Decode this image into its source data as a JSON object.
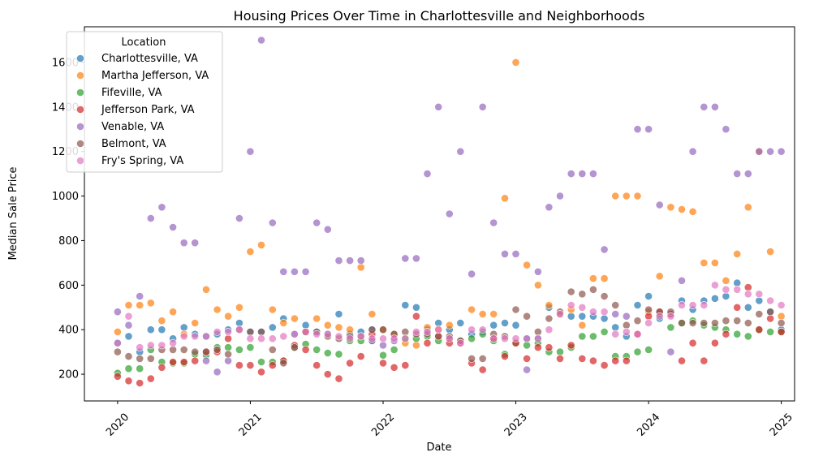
{
  "chart_data": {
    "type": "scatter",
    "title": "Housing Prices Over Time in Charlottesville and Neighborhoods",
    "xlabel": "Date",
    "ylabel": "Median Sale Price",
    "xlim": [
      2019.75,
      2025.1
    ],
    "ylim": [
      80,
      1760
    ],
    "x_ticks": [
      2020,
      2021,
      2022,
      2023,
      2024,
      2025
    ],
    "x_tick_labels": [
      "2020",
      "2021",
      "2022",
      "2023",
      "2024",
      "2025"
    ],
    "y_ticks": [
      200,
      400,
      600,
      800,
      1000,
      1200,
      1400,
      1600
    ],
    "y_tick_labels": [
      "200",
      "400",
      "600",
      "800",
      "1000",
      "1200",
      "1400",
      "1600"
    ],
    "x_scale": "time (year)",
    "grid": false,
    "legend": {
      "title": "Location",
      "placement": "top-left"
    },
    "series": [
      {
        "name": "Charlottesville, VA",
        "color": "#1f77b4",
        "x": [
          2020.0,
          2020.083,
          2020.167,
          2020.25,
          2020.333,
          2020.417,
          2020.5,
          2020.583,
          2020.667,
          2020.75,
          2020.833,
          2020.917,
          2021.0,
          2021.083,
          2021.167,
          2021.25,
          2021.333,
          2021.417,
          2021.5,
          2021.583,
          2021.667,
          2021.75,
          2021.833,
          2021.917,
          2022.0,
          2022.083,
          2022.167,
          2022.25,
          2022.333,
          2022.417,
          2022.5,
          2022.583,
          2022.667,
          2022.75,
          2022.833,
          2022.917,
          2023.0,
          2023.083,
          2023.167,
          2023.25,
          2023.333,
          2023.417,
          2023.5,
          2023.583,
          2023.667,
          2023.75,
          2023.833,
          2023.917,
          2024.0,
          2024.083,
          2024.167,
          2024.25,
          2024.333,
          2024.417,
          2024.5,
          2024.583,
          2024.667,
          2024.75,
          2024.833,
          2024.917,
          2025.0
        ],
        "y": [
          340,
          370,
          300,
          400,
          400,
          360,
          410,
          380,
          370,
          380,
          400,
          430,
          390,
          390,
          410,
          450,
          380,
          420,
          390,
          380,
          470,
          380,
          390,
          400,
          400,
          380,
          510,
          500,
          400,
          430,
          400,
          430,
          380,
          390,
          420,
          430,
          420,
          360,
          360,
          500,
          470,
          460,
          460,
          460,
          450,
          410,
          370,
          510,
          550,
          450,
          470,
          530,
          490,
          530,
          540,
          550,
          610,
          500,
          530,
          480,
          400
        ]
      },
      {
        "name": "Martha Jefferson, VA",
        "color": "#ff7f0e",
        "x": [
          2020.0,
          2020.083,
          2020.167,
          2020.25,
          2020.333,
          2020.417,
          2020.5,
          2020.583,
          2020.667,
          2020.75,
          2020.833,
          2020.917,
          2021.0,
          2021.083,
          2021.167,
          2021.25,
          2021.333,
          2021.417,
          2021.5,
          2021.583,
          2021.667,
          2021.75,
          2021.833,
          2021.917,
          2022.0,
          2022.083,
          2022.167,
          2022.25,
          2022.333,
          2022.417,
          2022.5,
          2022.583,
          2022.667,
          2022.75,
          2022.833,
          2022.917,
          2023.0,
          2023.083,
          2023.167,
          2023.25,
          2023.333,
          2023.417,
          2023.5,
          2023.583,
          2023.667,
          2023.75,
          2023.833,
          2023.917,
          2024.0,
          2024.083,
          2024.167,
          2024.25,
          2024.333,
          2024.417,
          2024.5,
          2024.583,
          2024.667,
          2024.75,
          2024.833,
          2024.917,
          2025.0
        ],
        "y": [
          390,
          510,
          510,
          520,
          440,
          480,
          380,
          430,
          580,
          490,
          460,
          500,
          750,
          780,
          490,
          430,
          450,
          390,
          450,
          420,
          410,
          400,
          680,
          470,
          400,
          380,
          340,
          330,
          410,
          400,
          420,
          350,
          490,
          470,
          470,
          990,
          1600,
          690,
          600,
          510,
          470,
          490,
          420,
          630,
          630,
          1000,
          1000,
          1000,
          480,
          640,
          950,
          940,
          930,
          700,
          700,
          620,
          740,
          950,
          1200,
          750,
          460
        ]
      },
      {
        "name": "Fifeville, VA",
        "color": "#2ca02c",
        "x": [
          2020.0,
          2020.083,
          2020.167,
          2020.25,
          2020.333,
          2020.417,
          2020.5,
          2020.583,
          2020.667,
          2020.75,
          2020.833,
          2020.917,
          2021.0,
          2021.083,
          2021.167,
          2021.25,
          2021.333,
          2021.417,
          2021.5,
          2021.583,
          2021.667,
          2021.75,
          2021.833,
          2021.917,
          2022.0,
          2022.083,
          2022.167,
          2022.25,
          2022.333,
          2022.417,
          2022.5,
          2022.583,
          2022.667,
          2022.75,
          2022.833,
          2022.917,
          2023.0,
          2023.083,
          2023.167,
          2023.25,
          2023.333,
          2023.417,
          2023.5,
          2023.583,
          2023.667,
          2023.75,
          2023.833,
          2023.917,
          2024.0,
          2024.083,
          2024.167,
          2024.25,
          2024.333,
          2024.417,
          2024.5,
          2024.583,
          2024.667,
          2024.75,
          2024.833,
          2024.917,
          2025.0
        ],
        "y": [
          205,
          225,
          225,
          310,
          255,
          250,
          250,
          290,
          285,
          320,
          320,
          310,
          320,
          255,
          255,
          260,
          320,
          335,
          310,
          295,
          290,
          350,
          350,
          350,
          285,
          310,
          360,
          360,
          370,
          350,
          360,
          350,
          360,
          380,
          350,
          290,
          340,
          330,
          340,
          300,
          300,
          320,
          370,
          370,
          390,
          280,
          280,
          300,
          310,
          470,
          410,
          430,
          440,
          420,
          410,
          400,
          380,
          370,
          400,
          390,
          390
        ]
      },
      {
        "name": "Jefferson Park, VA",
        "color": "#d62728",
        "x": [
          2020.0,
          2020.083,
          2020.167,
          2020.25,
          2020.333,
          2020.417,
          2020.5,
          2020.583,
          2020.667,
          2020.75,
          2020.833,
          2020.917,
          2021.0,
          2021.083,
          2021.167,
          2021.25,
          2021.333,
          2021.417,
          2021.5,
          2021.583,
          2021.667,
          2021.75,
          2021.833,
          2021.917,
          2022.0,
          2022.083,
          2022.167,
          2022.25,
          2022.333,
          2022.417,
          2022.5,
          2022.583,
          2022.667,
          2022.75,
          2022.833,
          2022.917,
          2023.0,
          2023.083,
          2023.167,
          2023.25,
          2023.333,
          2023.417,
          2023.5,
          2023.583,
          2023.667,
          2023.75,
          2023.833,
          2023.917,
          2024.0,
          2024.083,
          2024.167,
          2024.25,
          2024.333,
          2024.417,
          2024.5,
          2024.583,
          2024.667,
          2024.75,
          2024.833,
          2024.917,
          2025.0
        ],
        "y": [
          190,
          170,
          160,
          180,
          230,
          255,
          255,
          260,
          300,
          300,
          360,
          240,
          240,
          210,
          240,
          260,
          330,
          310,
          240,
          200,
          180,
          250,
          280,
          380,
          250,
          230,
          240,
          460,
          340,
          370,
          340,
          340,
          250,
          220,
          360,
          280,
          340,
          270,
          320,
          320,
          270,
          330,
          270,
          260,
          240,
          260,
          260,
          380,
          460,
          480,
          470,
          260,
          340,
          260,
          340,
          380,
          500,
          590,
          400,
          450,
          390
        ]
      },
      {
        "name": "Venable, VA",
        "color": "#9467bd",
        "x": [
          2020.0,
          2020.083,
          2020.167,
          2020.25,
          2020.333,
          2020.417,
          2020.5,
          2020.583,
          2020.667,
          2020.75,
          2020.833,
          2020.917,
          2021.0,
          2021.083,
          2021.167,
          2021.25,
          2021.333,
          2021.417,
          2021.5,
          2021.583,
          2021.667,
          2021.75,
          2021.833,
          2021.917,
          2022.0,
          2022.083,
          2022.167,
          2022.25,
          2022.333,
          2022.417,
          2022.5,
          2022.583,
          2022.667,
          2022.75,
          2022.833,
          2022.917,
          2023.0,
          2023.083,
          2023.167,
          2023.25,
          2023.333,
          2023.417,
          2023.5,
          2023.583,
          2023.667,
          2023.75,
          2023.833,
          2023.917,
          2024.0,
          2024.083,
          2024.167,
          2024.25,
          2024.333,
          2024.417,
          2024.5,
          2024.583,
          2024.667,
          2024.75,
          2024.833,
          2024.917,
          2025.0
        ],
        "y": [
          480,
          420,
          550,
          900,
          950,
          860,
          790,
          790,
          260,
          210,
          260,
          900,
          1200,
          1700,
          880,
          660,
          660,
          660,
          880,
          850,
          710,
          710,
          710,
          350,
          330,
          350,
          720,
          720,
          1100,
          1400,
          920,
          1200,
          650,
          1400,
          880,
          740,
          740,
          220,
          660,
          950,
          1000,
          1100,
          1100,
          1100,
          760,
          470,
          460,
          1300,
          1300,
          960,
          300,
          620,
          1200,
          1400,
          1400,
          1300,
          1100,
          1100,
          1200,
          1200,
          1200
        ]
      },
      {
        "name": "Belmont, VA",
        "color": "#8c564b",
        "x": [
          2020.0,
          2020.083,
          2020.167,
          2020.25,
          2020.333,
          2020.417,
          2020.5,
          2020.583,
          2020.667,
          2020.75,
          2020.833,
          2020.917,
          2021.0,
          2021.083,
          2021.167,
          2021.25,
          2021.333,
          2021.417,
          2021.5,
          2021.583,
          2021.667,
          2021.75,
          2021.833,
          2021.917,
          2022.0,
          2022.083,
          2022.167,
          2022.25,
          2022.333,
          2022.417,
          2022.5,
          2022.583,
          2022.667,
          2022.75,
          2022.833,
          2022.917,
          2023.0,
          2023.083,
          2023.167,
          2023.25,
          2023.333,
          2023.417,
          2023.5,
          2023.583,
          2023.667,
          2023.75,
          2023.833,
          2023.917,
          2024.0,
          2024.083,
          2024.167,
          2024.25,
          2024.333,
          2024.417,
          2024.5,
          2024.583,
          2024.667,
          2024.75,
          2024.833,
          2024.917,
          2025.0
        ],
        "y": [
          300,
          280,
          270,
          270,
          310,
          310,
          310,
          300,
          300,
          310,
          290,
          400,
          390,
          390,
          310,
          250,
          320,
          390,
          390,
          370,
          360,
          370,
          370,
          400,
          400,
          380,
          390,
          380,
          380,
          370,
          370,
          350,
          270,
          270,
          380,
          370,
          490,
          460,
          390,
          450,
          480,
          570,
          560,
          580,
          550,
          510,
          420,
          440,
          490,
          480,
          480,
          430,
          430,
          430,
          430,
          440,
          440,
          430,
          470,
          480,
          430
        ]
      },
      {
        "name": "Fry's Spring, VA",
        "color": "#e377c2",
        "x": [
          2020.0,
          2020.083,
          2020.167,
          2020.25,
          2020.333,
          2020.417,
          2020.5,
          2020.583,
          2020.667,
          2020.75,
          2020.833,
          2020.917,
          2021.0,
          2021.083,
          2021.167,
          2021.25,
          2021.333,
          2021.417,
          2021.5,
          2021.583,
          2021.667,
          2021.75,
          2021.833,
          2021.917,
          2022.0,
          2022.083,
          2022.167,
          2022.25,
          2022.333,
          2022.417,
          2022.5,
          2022.583,
          2022.667,
          2022.75,
          2022.833,
          2022.917,
          2023.0,
          2023.083,
          2023.167,
          2023.25,
          2023.333,
          2023.417,
          2023.5,
          2023.583,
          2023.667,
          2023.75,
          2023.833,
          2023.917,
          2024.0,
          2024.083,
          2024.167,
          2024.25,
          2024.333,
          2024.417,
          2024.5,
          2024.583,
          2024.667,
          2024.75,
          2024.833,
          2024.917,
          2025.0
        ],
        "y": [
          340,
          460,
          320,
          330,
          330,
          340,
          370,
          370,
          370,
          390,
          390,
          400,
          360,
          360,
          360,
          370,
          380,
          390,
          380,
          380,
          370,
          360,
          370,
          360,
          360,
          360,
          360,
          390,
          390,
          400,
          360,
          340,
          400,
          400,
          360,
          360,
          360,
          360,
          360,
          400,
          470,
          510,
          500,
          480,
          480,
          380,
          390,
          380,
          430,
          460,
          460,
          510,
          510,
          510,
          600,
          580,
          580,
          560,
          560,
          530,
          510
        ]
      }
    ]
  }
}
